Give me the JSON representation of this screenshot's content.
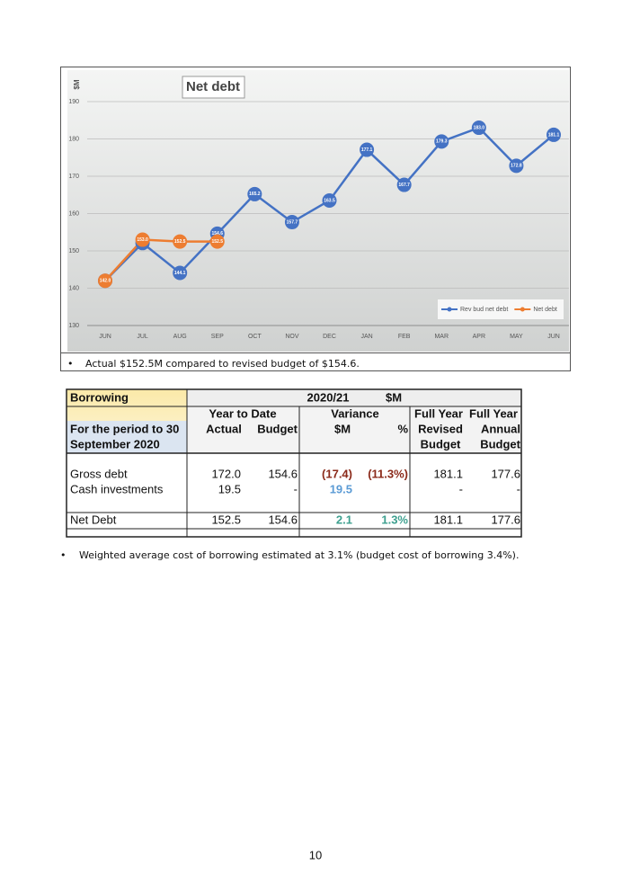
{
  "chart_data": {
    "type": "line",
    "title": "Net debt",
    "ylabel": "$M",
    "categories": [
      "JUN",
      "JUL",
      "AUG",
      "SEP",
      "OCT",
      "NOV",
      "DEC",
      "JAN",
      "FEB",
      "MAR",
      "APR",
      "MAY",
      "JUN"
    ],
    "ylim": [
      130,
      190
    ],
    "yticks": [
      130,
      140,
      150,
      160,
      170,
      180,
      190
    ],
    "grid": true,
    "legend": "lower right",
    "series": [
      {
        "name": "Rev bud net debt",
        "color": "#4472c4",
        "values": [
          142.0,
          152.1,
          144.1,
          154.6,
          165.2,
          157.7,
          163.5,
          177.1,
          167.7,
          179.3,
          183.0,
          172.8,
          181.1
        ],
        "value_labels": [
          "142.0",
          "152.1",
          "144.1",
          "154.6",
          "165.2",
          "157.7",
          "163.5",
          "177.1",
          "167.7",
          "179.3",
          "183.0",
          "172.8",
          "181.1"
        ]
      },
      {
        "name": "Net debt",
        "color": "#ed7d31",
        "values": [
          142.0,
          153.0,
          152.5,
          152.5,
          null,
          null,
          null,
          null,
          null,
          null,
          null,
          null,
          null
        ],
        "value_labels": [
          "142.0",
          "153.0",
          "152.5",
          "152.5",
          null,
          null,
          null,
          null,
          null,
          null,
          null,
          null,
          null
        ]
      }
    ]
  },
  "chart_note": "Actual $152.5M compared to revised budget of $154.6.",
  "table": {
    "title": "Borrowing",
    "period": "2020/21",
    "unit": "$M",
    "period_label": [
      "For the period to 30",
      "September 2020"
    ],
    "group_headers": [
      "Year to Date",
      "Variance",
      "Full Year",
      "Full Year"
    ],
    "column_headers": [
      [
        "Actual"
      ],
      [
        "Budget"
      ],
      [
        "$M"
      ],
      [
        "%"
      ],
      [
        "Revised",
        "Budget"
      ],
      [
        "Annual",
        "Budget"
      ]
    ],
    "rows": [
      [
        "Gross debt",
        "172.0",
        "154.6",
        "(17.4)",
        "(11.3%)",
        "181.1",
        "177.6"
      ],
      [
        "Cash investments",
        "19.5",
        "-",
        "19.5",
        null,
        "-",
        "-"
      ],
      [
        "Net Debt",
        "152.5",
        "154.6",
        "2.1",
        "1.3%",
        "181.1",
        "177.6"
      ]
    ]
  },
  "note": "Weighted average cost of borrowing estimated at 3.1% (budget cost of borrowing 3.4%).",
  "page_number": "10"
}
